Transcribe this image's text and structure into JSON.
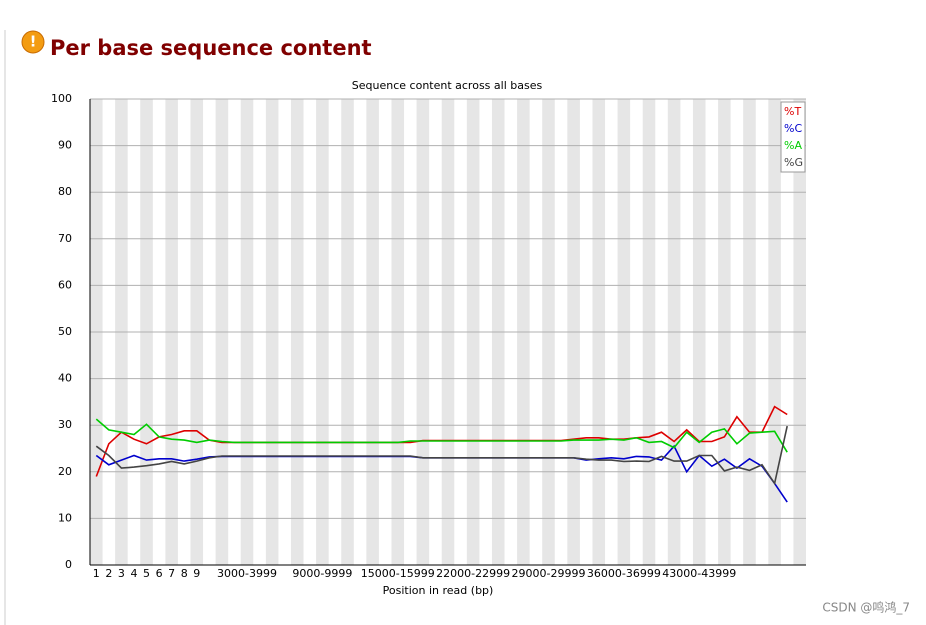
{
  "header": {
    "title": "Per base sequence content"
  },
  "watermark": "CSDN @鸣鸿_7",
  "chart_data": {
    "type": "line",
    "title": "Sequence content across all bases",
    "x_label": "Position in read (bp)",
    "categories": [
      "1",
      "2",
      "3",
      "4",
      "5",
      "6",
      "7",
      "8",
      "9",
      null,
      null,
      null,
      "3000-3999",
      null,
      null,
      null,
      null,
      null,
      "9000-9999",
      null,
      null,
      null,
      null,
      null,
      "15000-15999",
      null,
      null,
      null,
      null,
      null,
      "22000-22999",
      null,
      null,
      null,
      null,
      null,
      "29000-29999",
      null,
      null,
      null,
      null,
      null,
      "36000-36999",
      null,
      null,
      null,
      null,
      null,
      "43000-43999",
      null,
      null,
      null,
      null,
      null,
      null,
      null,
      null
    ],
    "series": [
      {
        "name": "%T",
        "color": "#dd0000",
        "values": [
          19,
          26,
          28.5,
          27,
          26,
          27.5,
          28,
          28.8,
          28.8,
          26.8,
          26.3,
          26.3,
          26.3,
          26.3,
          26.3,
          26.3,
          26.3,
          26.3,
          26.3,
          26.3,
          26.3,
          26.3,
          26.3,
          26.3,
          26.3,
          26.3,
          26.7,
          26.7,
          26.7,
          26.7,
          26.7,
          26.7,
          26.7,
          26.7,
          26.7,
          26.7,
          26.7,
          26.7,
          27,
          27.3,
          27.3,
          27,
          27,
          27.3,
          27.5,
          28.5,
          26.5,
          29,
          26.5,
          26.5,
          27.5,
          31.8,
          28.5,
          28.5,
          34,
          32.3,
          null
        ]
      },
      {
        "name": "%C",
        "color": "#0000cc",
        "values": [
          23.5,
          21.5,
          22.5,
          23.5,
          22.5,
          22.8,
          22.8,
          22.3,
          22.7,
          23.2,
          23.3,
          23.3,
          23.3,
          23.3,
          23.3,
          23.3,
          23.3,
          23.3,
          23.3,
          23.3,
          23.3,
          23.3,
          23.3,
          23.3,
          23.3,
          23.3,
          23,
          23,
          23,
          23,
          23,
          23,
          23,
          23,
          23,
          23,
          23,
          23,
          23,
          22.5,
          22.8,
          23,
          22.8,
          23.3,
          23.2,
          22.5,
          25.5,
          20,
          23.5,
          21.2,
          22.7,
          20.8,
          22.8,
          21.2,
          17.5,
          13.5,
          null
        ]
      },
      {
        "name": "%A",
        "color": "#00cc00",
        "values": [
          31.3,
          29,
          28.5,
          28,
          30.2,
          27.5,
          27,
          26.8,
          26.3,
          26.8,
          26.5,
          26.3,
          26.3,
          26.3,
          26.3,
          26.3,
          26.3,
          26.3,
          26.3,
          26.3,
          26.3,
          26.3,
          26.3,
          26.3,
          26.3,
          26.6,
          26.6,
          26.6,
          26.6,
          26.6,
          26.6,
          26.6,
          26.6,
          26.6,
          26.6,
          26.6,
          26.6,
          26.6,
          26.8,
          26.8,
          26.8,
          27,
          26.8,
          27.3,
          26.3,
          26.5,
          25.2,
          28.5,
          26.3,
          28.5,
          29.2,
          26,
          28.3,
          28.5,
          28.7,
          24.2,
          null
        ]
      },
      {
        "name": "%G",
        "color": "#444444",
        "values": [
          25.5,
          23.5,
          20.8,
          21,
          21.3,
          21.7,
          22.2,
          21.7,
          22.3,
          23,
          23.4,
          23.4,
          23.4,
          23.4,
          23.4,
          23.4,
          23.4,
          23.4,
          23.4,
          23.4,
          23.4,
          23.4,
          23.4,
          23.4,
          23.4,
          23.4,
          23,
          23,
          23,
          23,
          23,
          23,
          23,
          23,
          23,
          23,
          23,
          23,
          23,
          22.7,
          22.5,
          22.5,
          22.2,
          22.3,
          22.2,
          23.3,
          22.3,
          22.3,
          23.5,
          23.5,
          20.2,
          21,
          20.3,
          21.5,
          17.5,
          29.8,
          null
        ]
      }
    ],
    "ylim": [
      0,
      100
    ],
    "yticks": [
      0,
      10,
      20,
      30,
      40,
      50,
      60,
      70,
      80,
      90,
      100
    ],
    "grid": true,
    "legend": "top-right"
  }
}
